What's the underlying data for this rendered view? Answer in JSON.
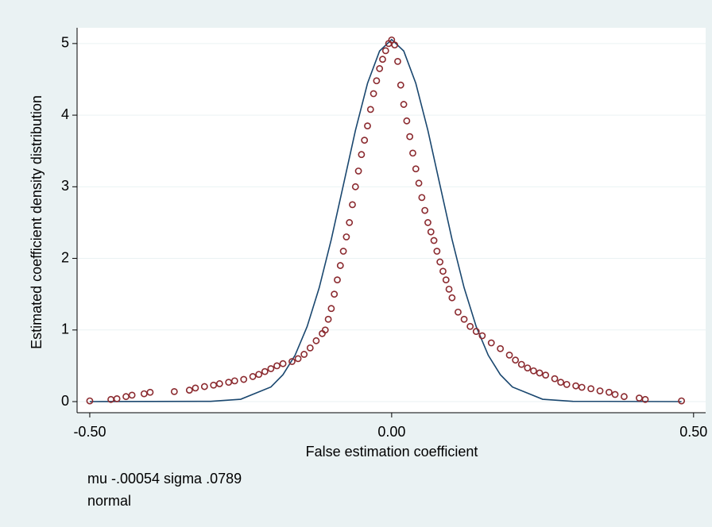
{
  "chart_data": {
    "type": "scatter",
    "xlabel": "False estimation coefficient",
    "ylabel": "Estimated coefficient density distribution",
    "notes": [
      "mu -.00054 sigma .0789",
      "normal"
    ],
    "xlim": [
      -0.521,
      0.52
    ],
    "ylim": [
      -0.155,
      5.22
    ],
    "xticks": [
      {
        "value": -0.5,
        "label": "-0.50"
      },
      {
        "value": 0,
        "label": "0.00"
      },
      {
        "value": 0.5,
        "label": "0.50"
      }
    ],
    "yticks": [
      0,
      1,
      2,
      3,
      4,
      5
    ],
    "grid": true,
    "series": [
      {
        "type": "scatter",
        "color": "#8b2a2f",
        "x": [
          -0.5,
          -0.465,
          -0.455,
          -0.44,
          -0.43,
          -0.41,
          -0.4,
          -0.36,
          -0.335,
          -0.325,
          -0.31,
          -0.295,
          -0.285,
          -0.27,
          -0.26,
          -0.245,
          -0.23,
          -0.22,
          -0.21,
          -0.2,
          -0.19,
          -0.18,
          -0.165,
          -0.155,
          -0.145,
          -0.135,
          -0.125,
          -0.115,
          -0.11,
          -0.105,
          -0.1,
          -0.095,
          -0.09,
          -0.085,
          -0.08,
          -0.075,
          -0.07,
          -0.065,
          -0.06,
          -0.055,
          -0.05,
          -0.045,
          -0.04,
          -0.035,
          -0.03,
          -0.025,
          -0.02,
          -0.015,
          -0.01,
          -0.005,
          0,
          0.005,
          0.01,
          0.015,
          0.02,
          0.025,
          0.03,
          0.035,
          0.04,
          0.045,
          0.05,
          0.055,
          0.06,
          0.065,
          0.07,
          0.075,
          0.08,
          0.085,
          0.09,
          0.095,
          0.1,
          0.11,
          0.12,
          0.13,
          0.14,
          0.15,
          0.165,
          0.18,
          0.195,
          0.205,
          0.215,
          0.225,
          0.235,
          0.245,
          0.255,
          0.27,
          0.28,
          0.29,
          0.305,
          0.315,
          0.33,
          0.345,
          0.36,
          0.37,
          0.385,
          0.41,
          0.42,
          0.48
        ],
        "values": [
          0.01,
          0.03,
          0.04,
          0.07,
          0.09,
          0.11,
          0.13,
          0.14,
          0.16,
          0.19,
          0.21,
          0.23,
          0.25,
          0.27,
          0.29,
          0.31,
          0.35,
          0.38,
          0.42,
          0.46,
          0.5,
          0.53,
          0.56,
          0.6,
          0.66,
          0.75,
          0.85,
          0.95,
          1.0,
          1.15,
          1.3,
          1.5,
          1.7,
          1.9,
          2.1,
          2.3,
          2.5,
          2.75,
          3.0,
          3.22,
          3.45,
          3.65,
          3.85,
          4.08,
          4.3,
          4.48,
          4.65,
          4.78,
          4.9,
          5.0,
          5.05,
          4.98,
          4.75,
          4.42,
          4.15,
          3.92,
          3.7,
          3.47,
          3.25,
          3.05,
          2.85,
          2.67,
          2.5,
          2.37,
          2.25,
          2.1,
          1.95,
          1.82,
          1.7,
          1.57,
          1.45,
          1.25,
          1.15,
          1.05,
          0.98,
          0.92,
          0.82,
          0.74,
          0.65,
          0.58,
          0.52,
          0.47,
          0.43,
          0.4,
          0.37,
          0.32,
          0.27,
          0.24,
          0.22,
          0.2,
          0.18,
          0.15,
          0.13,
          0.1,
          0.07,
          0.05,
          0.03,
          0.01
        ]
      },
      {
        "type": "line",
        "color": "#1a476f",
        "x": [
          -0.5,
          -0.3,
          -0.25,
          -0.2,
          -0.18,
          -0.16,
          -0.14,
          -0.12,
          -0.1,
          -0.08,
          -0.06,
          -0.04,
          -0.02,
          0,
          0.02,
          0.04,
          0.06,
          0.08,
          0.1,
          0.12,
          0.14,
          0.16,
          0.18,
          0.2,
          0.25,
          0.3,
          0.48
        ],
        "values": [
          0,
          0.004,
          0.033,
          0.204,
          0.376,
          0.647,
          1.048,
          1.59,
          2.265,
          3.024,
          3.787,
          4.444,
          4.896,
          5.056,
          4.896,
          4.444,
          3.787,
          3.024,
          2.265,
          1.59,
          1.048,
          0.647,
          0.376,
          0.204,
          0.033,
          0.004,
          0
        ]
      }
    ]
  }
}
